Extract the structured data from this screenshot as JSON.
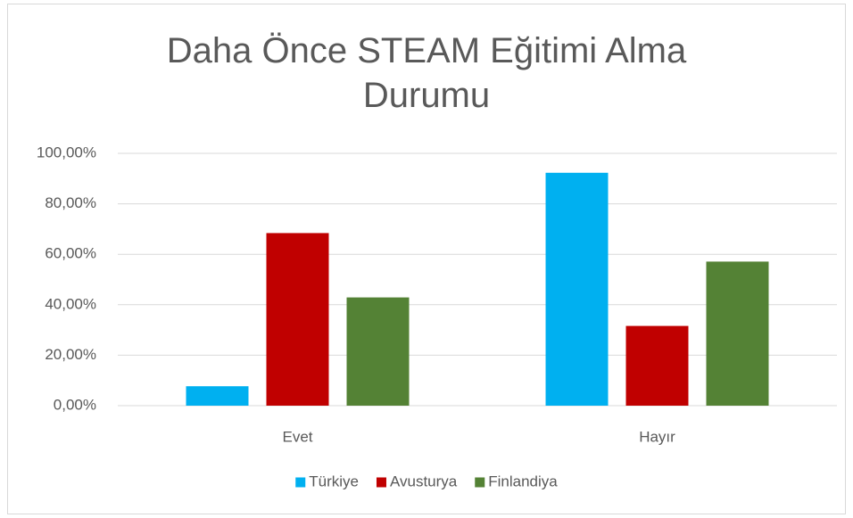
{
  "chart_data": {
    "type": "bar",
    "title": "Daha Önce STEAM Eğitimi Alma Durumu",
    "categories": [
      "Evet",
      "Hayır"
    ],
    "series": [
      {
        "name": "Türkiye",
        "color": "#00b0f0",
        "values": [
          7.7,
          92.3
        ]
      },
      {
        "name": "Avusturya",
        "color": "#c00000",
        "values": [
          68.4,
          31.6
        ]
      },
      {
        "name": "Finlandiya",
        "color": "#548235",
        "values": [
          42.9,
          57.1
        ]
      }
    ],
    "ylim": [
      0,
      100
    ],
    "yticks": [
      {
        "value": 0,
        "label": "0,00%"
      },
      {
        "value": 20,
        "label": "20,00%"
      },
      {
        "value": 40,
        "label": "40,00%"
      },
      {
        "value": 60,
        "label": "60,00%"
      },
      {
        "value": 80,
        "label": "80,00%"
      },
      {
        "value": 100,
        "label": "100,00%"
      }
    ],
    "grid": true,
    "legend": "bottom"
  }
}
